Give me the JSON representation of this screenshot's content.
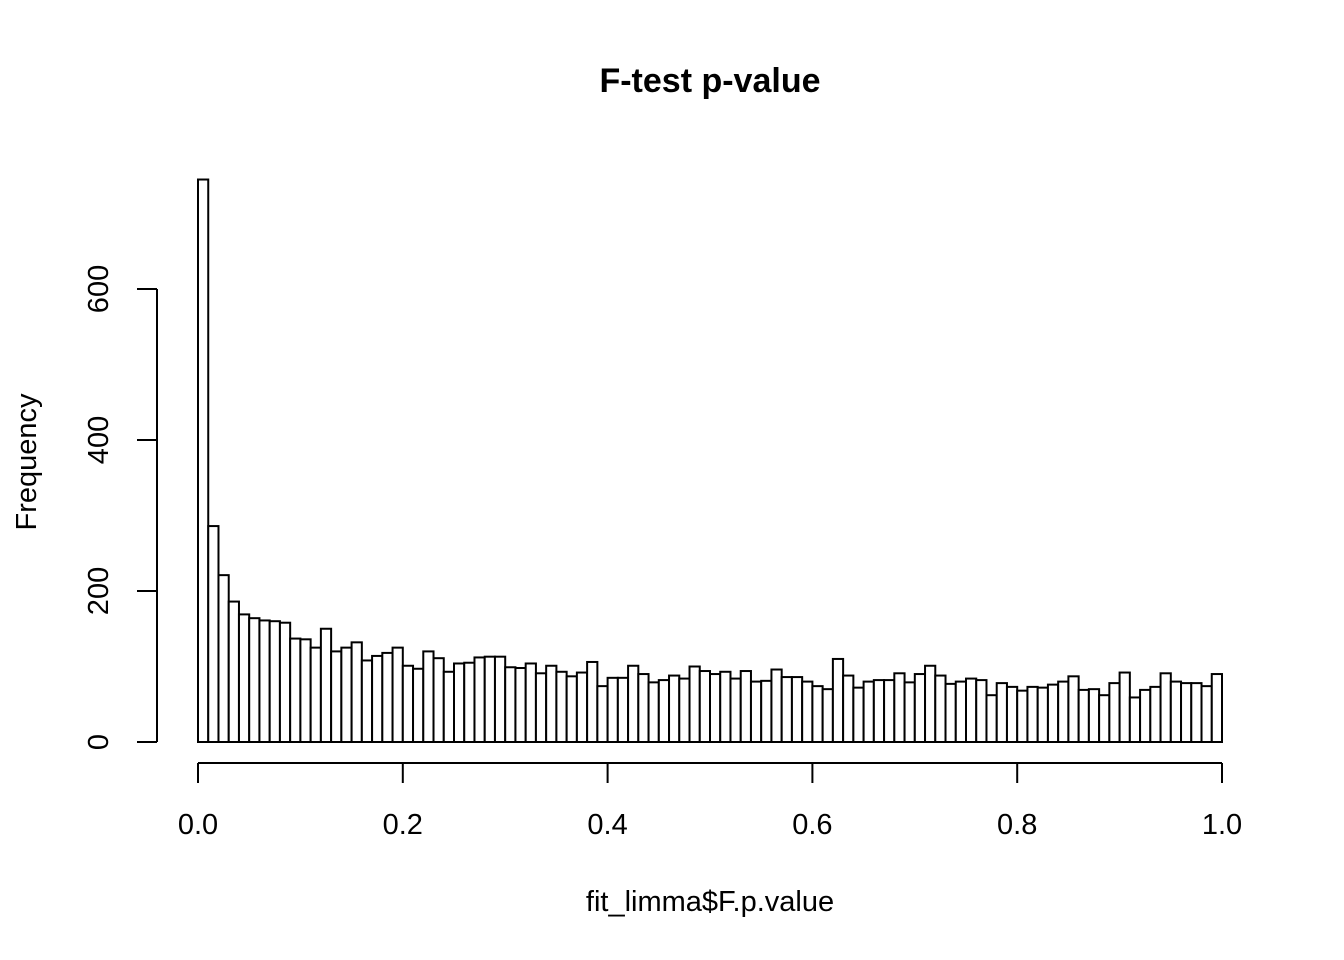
{
  "chart_data": {
    "type": "bar",
    "subtype": "histogram",
    "title": "F-test p-value",
    "xlabel": "fit_limma$F.p.value",
    "ylabel": "Frequency",
    "xlim": [
      0,
      1
    ],
    "ylim": [
      0,
      740
    ],
    "bin_width": 0.01,
    "x_ticks": [
      0,
      0.2,
      0.4,
      0.6,
      0.8,
      1
    ],
    "x_tick_labels": [
      "0.0",
      "0.2",
      "0.4",
      "0.6",
      "0.8",
      "1.0"
    ],
    "y_ticks": [
      0,
      200,
      400,
      600
    ],
    "y_tick_labels": [
      "0",
      "200",
      "400",
      "600"
    ],
    "grid": false,
    "bar_fill": "#ffffff",
    "bar_stroke": "#000000",
    "values": [
      745,
      286,
      221,
      186,
      169,
      164,
      161,
      160,
      158,
      137,
      136,
      125,
      150,
      120,
      125,
      132,
      108,
      114,
      118,
      125,
      101,
      97,
      120,
      111,
      93,
      104,
      105,
      112,
      113,
      113,
      99,
      98,
      104,
      91,
      101,
      93,
      87,
      92,
      106,
      74,
      85,
      85,
      101,
      90,
      79,
      82,
      88,
      84,
      100,
      94,
      90,
      93,
      84,
      94,
      80,
      81,
      96,
      86,
      86,
      80,
      74,
      70,
      110,
      88,
      72,
      80,
      82,
      82,
      91,
      79,
      90,
      101,
      88,
      77,
      80,
      84,
      82,
      62,
      78,
      73,
      68,
      73,
      72,
      76,
      80,
      87,
      69,
      70,
      62,
      78,
      92,
      59,
      69,
      73,
      91,
      80,
      78,
      78,
      74,
      90
    ]
  }
}
